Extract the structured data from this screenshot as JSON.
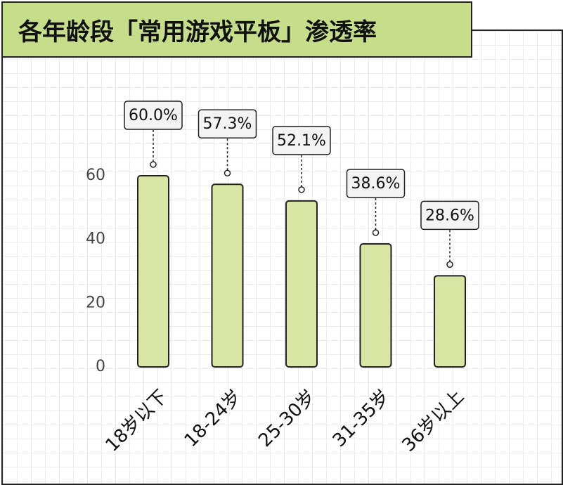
{
  "chart_data": {
    "type": "bar",
    "title": "各年龄段「常用游戏平板」渗透率",
    "categories": [
      "18岁以下",
      "18-24岁",
      "25-30岁",
      "31-35岁",
      "36岁以上"
    ],
    "values": [
      60.0,
      57.3,
      52.1,
      38.6,
      28.6
    ],
    "value_labels": [
      "60.0%",
      "57.3%",
      "52.1%",
      "38.6%",
      "28.6%"
    ],
    "color": "#d9e6a3",
    "ylim": [
      0,
      60
    ],
    "yticks": [
      0,
      20,
      40,
      60
    ]
  }
}
